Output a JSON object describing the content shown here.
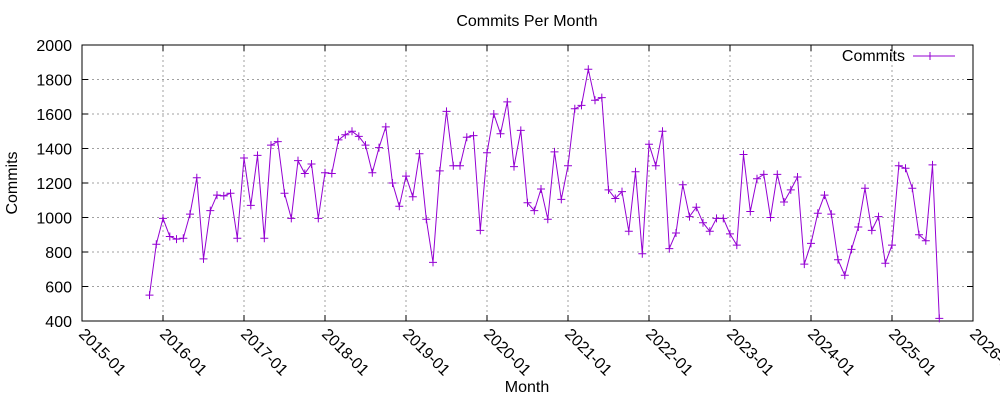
{
  "chart_data": {
    "type": "line",
    "title": "Commits Per Month",
    "xlabel": "Month",
    "ylabel": "Commits",
    "color": "#9400d3",
    "marker": "plus",
    "grid": true,
    "legend_position": "top-right",
    "xlim": [
      "2015-01",
      "2026-01"
    ],
    "ylim": [
      400,
      2000
    ],
    "x_ticks": [
      "2015-01",
      "2016-01",
      "2017-01",
      "2018-01",
      "2019-01",
      "2020-01",
      "2021-01",
      "2022-01",
      "2023-01",
      "2024-01",
      "2025-01",
      "2026-01"
    ],
    "x_tick_labels": [
      "2015-01",
      "2016-01",
      "2017-01",
      "2018-01",
      "2019-01",
      "2020-01",
      "2021-01",
      "2022-01",
      "2023-01",
      "2024-01",
      "2025-01",
      "2026-01"
    ],
    "y_ticks": [
      400,
      600,
      800,
      1000,
      1200,
      1400,
      1600,
      1800,
      2000
    ],
    "y_tick_labels": [
      "400",
      "600",
      "800",
      "1000",
      "1200",
      "1400",
      "1600",
      "1800",
      "2000"
    ],
    "series": [
      {
        "name": "Commits",
        "x": [
          "2015-11",
          "2015-12",
          "2016-01",
          "2016-02",
          "2016-03",
          "2016-04",
          "2016-05",
          "2016-06",
          "2016-07",
          "2016-08",
          "2016-09",
          "2016-10",
          "2016-11",
          "2016-12",
          "2017-01",
          "2017-02",
          "2017-03",
          "2017-04",
          "2017-05",
          "2017-06",
          "2017-07",
          "2017-08",
          "2017-09",
          "2017-10",
          "2017-11",
          "2017-12",
          "2018-01",
          "2018-02",
          "2018-03",
          "2018-04",
          "2018-05",
          "2018-06",
          "2018-07",
          "2018-08",
          "2018-09",
          "2018-10",
          "2018-11",
          "2018-12",
          "2019-01",
          "2019-02",
          "2019-03",
          "2019-04",
          "2019-05",
          "2019-06",
          "2019-07",
          "2019-08",
          "2019-09",
          "2019-10",
          "2019-11",
          "2019-12",
          "2020-01",
          "2020-02",
          "2020-03",
          "2020-04",
          "2020-05",
          "2020-06",
          "2020-07",
          "2020-08",
          "2020-09",
          "2020-10",
          "2020-11",
          "2020-12",
          "2021-01",
          "2021-02",
          "2021-03",
          "2021-04",
          "2021-05",
          "2021-06",
          "2021-07",
          "2021-08",
          "2021-09",
          "2021-10",
          "2021-11",
          "2021-12",
          "2022-01",
          "2022-02",
          "2022-03",
          "2022-04",
          "2022-05",
          "2022-06",
          "2022-07",
          "2022-08",
          "2022-09",
          "2022-10",
          "2022-11",
          "2022-12",
          "2023-01",
          "2023-02",
          "2023-03",
          "2023-04",
          "2023-05",
          "2023-06",
          "2023-07",
          "2023-08",
          "2023-09",
          "2023-10",
          "2023-11",
          "2023-12",
          "2024-01",
          "2024-02",
          "2024-03",
          "2024-04",
          "2024-05",
          "2024-06",
          "2024-07",
          "2024-08",
          "2024-09",
          "2024-10",
          "2024-11",
          "2024-12",
          "2025-01",
          "2025-02",
          "2025-03",
          "2025-04",
          "2025-05",
          "2025-06",
          "2025-07",
          "2025-08"
        ],
        "values": [
          550,
          845,
          995,
          890,
          875,
          880,
          1020,
          1230,
          760,
          1040,
          1130,
          1125,
          1140,
          880,
          1345,
          1070,
          1360,
          880,
          1420,
          1440,
          1140,
          995,
          1330,
          1255,
          1310,
          995,
          1260,
          1255,
          1450,
          1480,
          1500,
          1470,
          1420,
          1260,
          1405,
          1525,
          1200,
          1065,
          1240,
          1120,
          1370,
          990,
          740,
          1270,
          1615,
          1300,
          1300,
          1465,
          1475,
          925,
          1375,
          1600,
          1485,
          1670,
          1295,
          1505,
          1085,
          1040,
          1165,
          990,
          1380,
          1105,
          1300,
          1630,
          1650,
          1860,
          1680,
          1695,
          1160,
          1110,
          1150,
          920,
          1265,
          790,
          1425,
          1300,
          1500,
          820,
          910,
          1190,
          1005,
          1060,
          970,
          920,
          995,
          995,
          905,
          840,
          1365,
          1035,
          1225,
          1250,
          1000,
          1250,
          1090,
          1160,
          1235,
          730,
          850,
          1025,
          1130,
          1020,
          755,
          665,
          815,
          945,
          1170,
          925,
          1005,
          735,
          840,
          1300,
          1285,
          1170,
          900,
          865,
          1305,
          415
        ]
      }
    ]
  }
}
